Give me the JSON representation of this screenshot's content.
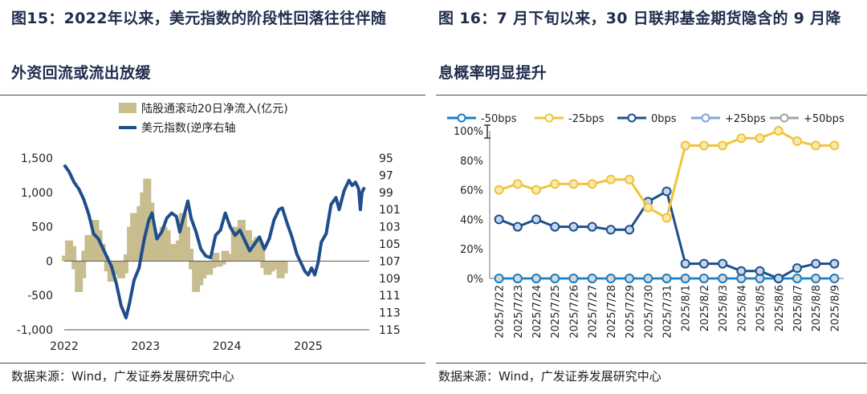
{
  "left": {
    "title_line1": "图15：2022年以来，美元指数的阶段性回落往往伴随",
    "title_line2": "外资回流或流出放缓",
    "source": "数据来源：Wind，广发证券发展研究中心",
    "chart_data": {
      "type": "bar+line",
      "series": [
        {
          "name": "陆股通滚动20日净流入(亿元)",
          "kind": "bar",
          "color": "#c8bd8f",
          "axis": "left"
        },
        {
          "name": "美元指数(逆序右轴",
          "kind": "line",
          "color": "#1f4e8c",
          "axis": "right",
          "inverted": true
        }
      ],
      "x_ticks": [
        "2022",
        "2023",
        "2024",
        "2025"
      ],
      "left_axis": {
        "ticks": [
          "1,500",
          "1,000",
          "500",
          "0",
          "-500",
          "-1,000"
        ],
        "values": [
          1500,
          1000,
          500,
          0,
          -500,
          -1000
        ],
        "ylim": [
          -1000,
          1500
        ]
      },
      "right_axis": {
        "ticks": [
          "95",
          "97",
          "99",
          "101",
          "103",
          "105",
          "107",
          "109",
          "111",
          "113",
          "115"
        ],
        "values": [
          95,
          97,
          99,
          101,
          103,
          105,
          107,
          109,
          111,
          113,
          115
        ],
        "ylim": [
          95,
          115
        ],
        "inverted": true
      },
      "x_range": [
        2022.0,
        2025.75
      ],
      "usd_index": [
        [
          2022.0,
          95.8
        ],
        [
          2022.06,
          96.6
        ],
        [
          2022.12,
          97.8
        ],
        [
          2022.18,
          98.6
        ],
        [
          2022.24,
          99.8
        ],
        [
          2022.3,
          101.5
        ],
        [
          2022.36,
          103.8
        ],
        [
          2022.42,
          104.4
        ],
        [
          2022.48,
          105.6
        ],
        [
          2022.52,
          106.4
        ],
        [
          2022.58,
          107.6
        ],
        [
          2022.64,
          109.6
        ],
        [
          2022.7,
          112.2
        ],
        [
          2022.76,
          113.6
        ],
        [
          2022.8,
          112.0
        ],
        [
          2022.86,
          109.2
        ],
        [
          2022.92,
          107.8
        ],
        [
          2022.98,
          104.6
        ],
        [
          2023.04,
          102.2
        ],
        [
          2023.08,
          101.4
        ],
        [
          2023.14,
          104.4
        ],
        [
          2023.2,
          103.6
        ],
        [
          2023.26,
          102.0
        ],
        [
          2023.32,
          101.4
        ],
        [
          2023.38,
          101.8
        ],
        [
          2023.42,
          103.6
        ],
        [
          2023.46,
          102.2
        ],
        [
          2023.52,
          100.0
        ],
        [
          2023.56,
          102.0
        ],
        [
          2023.62,
          103.6
        ],
        [
          2023.68,
          105.6
        ],
        [
          2023.74,
          106.4
        ],
        [
          2023.8,
          106.6
        ],
        [
          2023.86,
          104.0
        ],
        [
          2023.92,
          103.4
        ],
        [
          2023.98,
          101.4
        ],
        [
          2024.04,
          103.0
        ],
        [
          2024.1,
          104.0
        ],
        [
          2024.16,
          103.4
        ],
        [
          2024.22,
          104.6
        ],
        [
          2024.28,
          105.8
        ],
        [
          2024.34,
          105.0
        ],
        [
          2024.4,
          104.2
        ],
        [
          2024.46,
          105.6
        ],
        [
          2024.52,
          104.4
        ],
        [
          2024.58,
          102.2
        ],
        [
          2024.64,
          101.0
        ],
        [
          2024.68,
          100.8
        ],
        [
          2024.74,
          102.6
        ],
        [
          2024.8,
          104.2
        ],
        [
          2024.86,
          106.2
        ],
        [
          2024.92,
          107.4
        ],
        [
          2024.96,
          108.2
        ],
        [
          2025.0,
          108.6
        ],
        [
          2025.04,
          107.8
        ],
        [
          2025.08,
          108.6
        ],
        [
          2025.12,
          107.2
        ],
        [
          2025.16,
          104.8
        ],
        [
          2025.22,
          103.8
        ],
        [
          2025.28,
          100.4
        ],
        [
          2025.34,
          99.6
        ],
        [
          2025.38,
          101.0
        ],
        [
          2025.44,
          98.8
        ],
        [
          2025.5,
          97.6
        ],
        [
          2025.54,
          98.2
        ],
        [
          2025.58,
          97.8
        ],
        [
          2025.62,
          98.6
        ],
        [
          2025.64,
          101.0
        ],
        [
          2025.66,
          99.0
        ],
        [
          2025.69,
          98.4
        ]
      ],
      "net_inflow": [
        [
          2022.02,
          80
        ],
        [
          2022.06,
          300
        ],
        [
          2022.1,
          220
        ],
        [
          2022.14,
          -120
        ],
        [
          2022.18,
          -450
        ],
        [
          2022.22,
          -250
        ],
        [
          2022.26,
          150
        ],
        [
          2022.3,
          380
        ],
        [
          2022.34,
          200
        ],
        [
          2022.38,
          600
        ],
        [
          2022.42,
          450
        ],
        [
          2022.46,
          250
        ],
        [
          2022.5,
          80
        ],
        [
          2022.54,
          -150
        ],
        [
          2022.58,
          -300
        ],
        [
          2022.62,
          -200
        ],
        [
          2022.66,
          -100
        ],
        [
          2022.7,
          -250
        ],
        [
          2022.74,
          -180
        ],
        [
          2022.78,
          100
        ],
        [
          2022.82,
          500
        ],
        [
          2022.86,
          700
        ],
        [
          2022.9,
          550
        ],
        [
          2022.94,
          800
        ],
        [
          2022.98,
          1000
        ],
        [
          2023.02,
          1200
        ],
        [
          2023.06,
          850
        ],
        [
          2023.1,
          400
        ],
        [
          2023.14,
          200
        ],
        [
          2023.18,
          350
        ],
        [
          2023.22,
          500
        ],
        [
          2023.26,
          450
        ],
        [
          2023.3,
          200
        ],
        [
          2023.34,
          250
        ],
        [
          2023.38,
          120
        ],
        [
          2023.42,
          300
        ],
        [
          2023.46,
          700
        ],
        [
          2023.5,
          500
        ],
        [
          2023.54,
          180
        ],
        [
          2023.58,
          -120
        ],
        [
          2023.62,
          -450
        ],
        [
          2023.66,
          -350
        ],
        [
          2023.7,
          -250
        ],
        [
          2023.74,
          -150
        ],
        [
          2023.78,
          -200
        ],
        [
          2023.82,
          -100
        ],
        [
          2023.86,
          120
        ],
        [
          2023.9,
          -80
        ],
        [
          2023.94,
          -50
        ],
        [
          2023.98,
          150
        ],
        [
          2024.02,
          100
        ],
        [
          2024.06,
          50
        ],
        [
          2024.1,
          500
        ],
        [
          2024.14,
          400
        ],
        [
          2024.18,
          600
        ],
        [
          2024.22,
          350
        ],
        [
          2024.26,
          450
        ],
        [
          2024.3,
          300
        ],
        [
          2024.34,
          250
        ],
        [
          2024.38,
          350
        ],
        [
          2024.42,
          200
        ],
        [
          2024.46,
          -100
        ],
        [
          2024.5,
          -200
        ],
        [
          2024.54,
          -150
        ],
        [
          2024.58,
          -80
        ],
        [
          2024.62,
          -120
        ],
        [
          2024.66,
          -250
        ],
        [
          2024.7,
          -180
        ]
      ]
    }
  },
  "right": {
    "title_line1": "图 16：7 月下旬以来，30 日联邦基金期货隐含的 9 月降",
    "title_line2": "息概率明显提升",
    "source": "数据来源：Wind，广发证券发展研究中心",
    "chart_data": {
      "type": "line",
      "categories": [
        "2025/7/22",
        "2025/7/23",
        "2025/7/24",
        "2025/7/25",
        "2025/7/26",
        "2025/7/27",
        "2025/7/28",
        "2025/7/29",
        "2025/7/30",
        "2025/7/31",
        "2025/8/1",
        "2025/8/2",
        "2025/8/3",
        "2025/8/4",
        "2025/8/5",
        "2025/8/6",
        "2025/8/7",
        "2025/8/8",
        "2025/8/9"
      ],
      "y_ticks": [
        "100%",
        "80%",
        "60%",
        "40%",
        "20%",
        "0%"
      ],
      "y_tick_values": [
        100,
        80,
        60,
        40,
        20,
        0
      ],
      "ylim": [
        0,
        100
      ],
      "legend_position": "top",
      "series": [
        {
          "name": "-50bps",
          "color": "#1a7fc4",
          "values": [
            0,
            0,
            0,
            0,
            0,
            0,
            0,
            0,
            0,
            0,
            0,
            0,
            0,
            0,
            0,
            0,
            0,
            0,
            0
          ]
        },
        {
          "name": "-25bps",
          "color": "#f0c43a",
          "values": [
            60,
            64,
            60,
            64,
            64,
            64,
            67,
            67,
            48,
            41,
            90,
            90,
            90,
            95,
            95,
            100,
            93,
            90,
            90
          ]
        },
        {
          "name": "0bps",
          "color": "#1c4f8c",
          "values": [
            40,
            35,
            40,
            35,
            35,
            35,
            33,
            33,
            52,
            59,
            10,
            10,
            10,
            5,
            5,
            0,
            7,
            10,
            10
          ]
        },
        {
          "name": "+25bps",
          "color": "#7fa6d8",
          "values": [
            0,
            0,
            0,
            0,
            0,
            0,
            0,
            0,
            0,
            0,
            0,
            0,
            0,
            0,
            0,
            0,
            0,
            0,
            0
          ]
        },
        {
          "name": "+50bps",
          "color": "#a3a3a3",
          "values": [
            0,
            0,
            0,
            0,
            0,
            0,
            0,
            0,
            0,
            0,
            0,
            0,
            0,
            0,
            0,
            0,
            0,
            0,
            0
          ]
        }
      ]
    }
  }
}
